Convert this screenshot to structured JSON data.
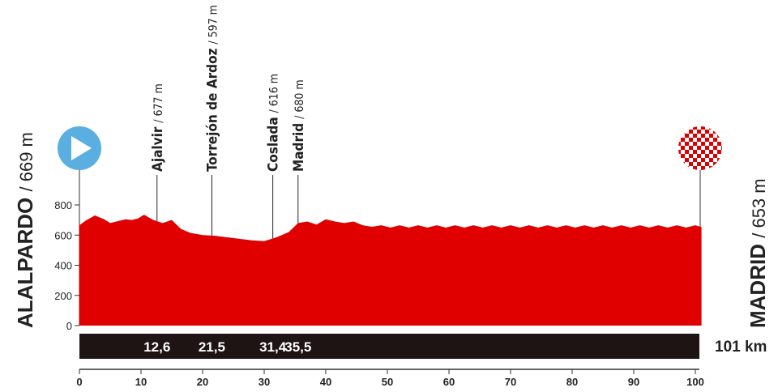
{
  "chart_data": {
    "type": "area",
    "color": "#e00000",
    "x": [
      0,
      1,
      2.5,
      4,
      5,
      6,
      7.5,
      8.5,
      9.5,
      10.5,
      12,
      13.5,
      15,
      16.5,
      18,
      20,
      22,
      24,
      26,
      28,
      30,
      32,
      34,
      35.5,
      37,
      38.5,
      40,
      41.5,
      43,
      44.5,
      46,
      47.5,
      49,
      50.5,
      52,
      53.5,
      55,
      56.5,
      58,
      59.5,
      61,
      62.5,
      64,
      65.5,
      67,
      68.5,
      70,
      71.5,
      73,
      74.5,
      76,
      77.5,
      79,
      80.5,
      82,
      83.5,
      85,
      86.5,
      88,
      89.5,
      91,
      92.5,
      94,
      95.5,
      97,
      98.5,
      100,
      101
    ],
    "values": [
      665,
      695,
      730,
      705,
      680,
      690,
      705,
      700,
      710,
      735,
      700,
      680,
      700,
      640,
      615,
      600,
      595,
      585,
      575,
      565,
      560,
      585,
      620,
      680,
      690,
      670,
      705,
      690,
      680,
      690,
      665,
      655,
      665,
      650,
      665,
      650,
      665,
      650,
      665,
      650,
      665,
      650,
      665,
      650,
      665,
      650,
      665,
      650,
      665,
      650,
      665,
      650,
      665,
      650,
      665,
      650,
      665,
      650,
      665,
      650,
      665,
      650,
      665,
      650,
      665,
      650,
      665,
      653
    ],
    "xlim": [
      0,
      101
    ],
    "xticks": [
      0,
      10,
      20,
      30,
      40,
      50,
      60,
      70,
      80,
      90,
      100
    ],
    "ylim": [
      0,
      800
    ],
    "yticks": [
      0,
      200,
      400,
      600,
      800
    ],
    "start": {
      "name": "ALALPARDO",
      "elevation_label": "/ 669 m"
    },
    "finish": {
      "name": "MADRID",
      "elevation_label": "/ 653 m"
    },
    "distance_label": "101 km",
    "waypoints": [
      {
        "name": "Ajalvir",
        "elevation_label": "/ 677 m",
        "km": 12.6,
        "km_label": "12,6"
      },
      {
        "name": "Torrejón de Ardoz",
        "elevation_label": "/ 597 m",
        "km": 21.5,
        "km_label": "21,5"
      },
      {
        "name": "Coslada",
        "elevation_label": "/ 616 m",
        "km": 31.4,
        "km_label": "31,4"
      },
      {
        "name": "Madrid",
        "elevation_label": "/ 680 m",
        "km": 35.5,
        "km_label": "35,5"
      }
    ]
  }
}
